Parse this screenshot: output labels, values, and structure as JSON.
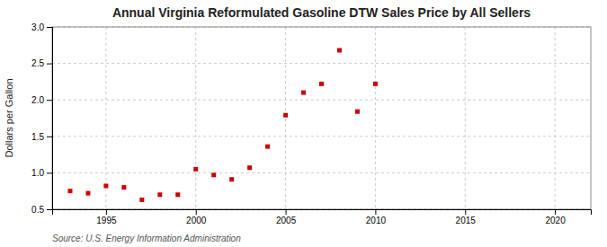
{
  "chart_data": {
    "type": "scatter",
    "title": "Annual Virginia Reformulated Gasoline DTW Sales Price by All Sellers",
    "ylabel": "Dollars per Gallon",
    "annotation": "Source: U.S. Energy Information Administration",
    "x": [
      1993,
      1994,
      1995,
      1996,
      1997,
      1998,
      1999,
      2000,
      2001,
      2002,
      2003,
      2004,
      2005,
      2006,
      2007,
      2008,
      2009,
      2010
    ],
    "values": [
      0.75,
      0.72,
      0.82,
      0.8,
      0.63,
      0.7,
      0.7,
      1.05,
      0.97,
      0.91,
      1.07,
      1.36,
      1.79,
      2.1,
      2.22,
      2.68,
      1.84,
      2.22
    ],
    "color": "#cc0000",
    "marker": "square",
    "xlim": [
      1992,
      2022
    ],
    "ylim": [
      0.5,
      3.0
    ],
    "xticks": [
      1995,
      2000,
      2005,
      2010,
      2015,
      2020
    ],
    "yticks": [
      0.5,
      {
        "value": 1.0,
        "label": "1.0"
      },
      1.5,
      {
        "value": 2.0,
        "label": "2.0"
      },
      2.5,
      {
        "value": 3.0,
        "label": "3.0"
      }
    ],
    "grid": true
  }
}
